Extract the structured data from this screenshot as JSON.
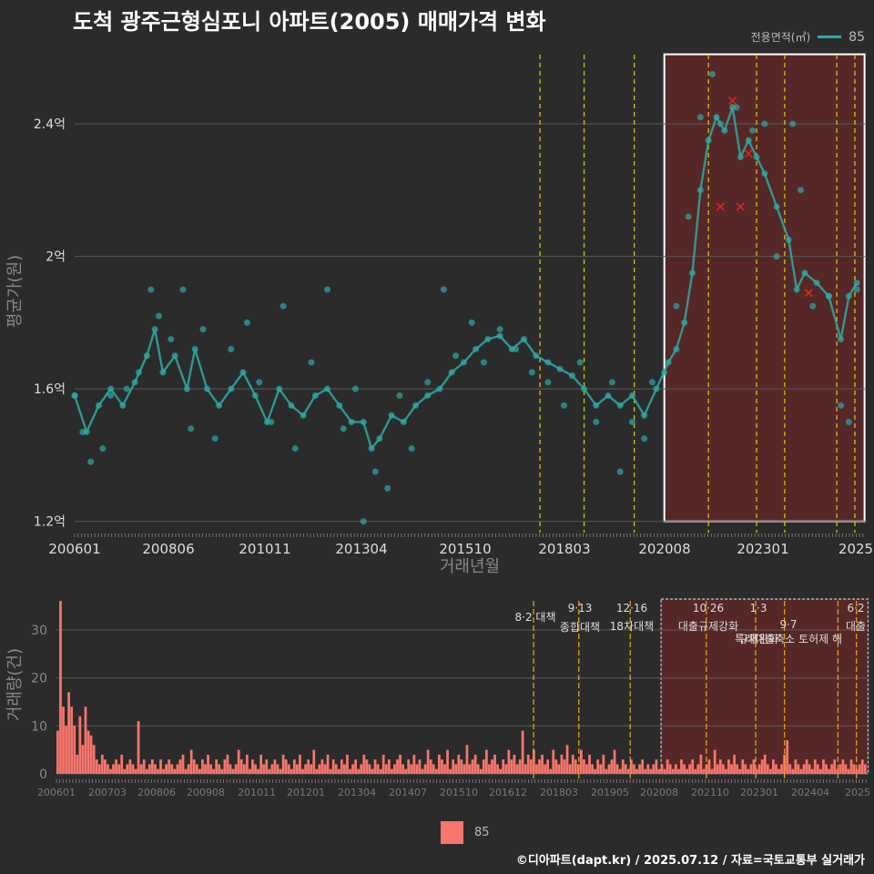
{
  "title": "도척 광주근형심포니 아파트(2005) 매매가격 변화",
  "legend": {
    "title": "전용면적(㎡)",
    "series_name": "85",
    "color": "#2fa9a4"
  },
  "bar_legend": {
    "name": "85",
    "color": "#f8766d"
  },
  "footer": "©디아파트(dapt.kr) / 2025.07.12 / 자료=국토교통부 실거래가",
  "colors": {
    "line": "#2fa9a4",
    "bar": "#f8766d",
    "highlight_fill": "#6a2626",
    "policy_line": "#d4c016",
    "bar_policy_line": "#e0a020",
    "cancelled_marker": "#e0261e",
    "background": "#2b2b2b"
  },
  "chart_data": [
    {
      "type": "line",
      "ylabel": "평균가(원)",
      "xlabel": "거래년월",
      "x_ticks": [
        "200601",
        "200806",
        "201011",
        "201304",
        "201510",
        "201803",
        "202008",
        "202301",
        "2025"
      ],
      "y_ticks": [
        "1.2억",
        "1.6억",
        "2억",
        "2.4억"
      ],
      "y_tick_values": [
        1.2,
        1.6,
        2.0,
        2.4
      ],
      "ylim": [
        1.18,
        2.62
      ],
      "xlim": [
        2006.0,
        2025.7
      ],
      "highlight_range": [
        2020.7,
        2025.6
      ],
      "policy_lines": [
        2017.6,
        2018.7,
        2019.95,
        2021.8,
        2023.0,
        2023.7,
        2025.0,
        2025.45
      ],
      "series": [
        {
          "name": "85",
          "points": [
            [
              2006.0,
              1.58
            ],
            [
              2006.3,
              1.47
            ],
            [
              2006.6,
              1.55
            ],
            [
              2006.9,
              1.6
            ],
            [
              2007.2,
              1.55
            ],
            [
              2007.5,
              1.62
            ],
            [
              2007.8,
              1.7
            ],
            [
              2008.0,
              1.78
            ],
            [
              2008.2,
              1.65
            ],
            [
              2008.5,
              1.7
            ],
            [
              2008.8,
              1.6
            ],
            [
              2009.0,
              1.72
            ],
            [
              2009.3,
              1.6
            ],
            [
              2009.6,
              1.55
            ],
            [
              2009.9,
              1.6
            ],
            [
              2010.2,
              1.65
            ],
            [
              2010.5,
              1.58
            ],
            [
              2010.8,
              1.5
            ],
            [
              2011.1,
              1.6
            ],
            [
              2011.4,
              1.55
            ],
            [
              2011.7,
              1.52
            ],
            [
              2012.0,
              1.58
            ],
            [
              2012.3,
              1.6
            ],
            [
              2012.6,
              1.55
            ],
            [
              2012.9,
              1.5
            ],
            [
              2013.2,
              1.5
            ],
            [
              2013.4,
              1.42
            ],
            [
              2013.6,
              1.45
            ],
            [
              2013.9,
              1.52
            ],
            [
              2014.2,
              1.5
            ],
            [
              2014.5,
              1.55
            ],
            [
              2014.8,
              1.58
            ],
            [
              2015.1,
              1.6
            ],
            [
              2015.4,
              1.65
            ],
            [
              2015.7,
              1.68
            ],
            [
              2016.0,
              1.72
            ],
            [
              2016.3,
              1.75
            ],
            [
              2016.6,
              1.76
            ],
            [
              2016.9,
              1.72
            ],
            [
              2017.2,
              1.75
            ],
            [
              2017.5,
              1.7
            ],
            [
              2017.8,
              1.68
            ],
            [
              2018.1,
              1.66
            ],
            [
              2018.4,
              1.64
            ],
            [
              2018.7,
              1.6
            ],
            [
              2019.0,
              1.55
            ],
            [
              2019.3,
              1.58
            ],
            [
              2019.6,
              1.55
            ],
            [
              2019.9,
              1.58
            ],
            [
              2020.2,
              1.52
            ],
            [
              2020.5,
              1.6
            ],
            [
              2020.8,
              1.68
            ],
            [
              2021.0,
              1.72
            ],
            [
              2021.2,
              1.8
            ],
            [
              2021.4,
              1.95
            ],
            [
              2021.6,
              2.2
            ],
            [
              2021.8,
              2.35
            ],
            [
              2022.0,
              2.42
            ],
            [
              2022.2,
              2.38
            ],
            [
              2022.4,
              2.45
            ],
            [
              2022.6,
              2.3
            ],
            [
              2022.8,
              2.35
            ],
            [
              2023.0,
              2.3
            ],
            [
              2023.2,
              2.25
            ],
            [
              2023.5,
              2.15
            ],
            [
              2023.8,
              2.05
            ],
            [
              2024.0,
              1.9
            ],
            [
              2024.2,
              1.95
            ],
            [
              2024.5,
              1.92
            ],
            [
              2024.8,
              1.88
            ],
            [
              2025.1,
              1.75
            ],
            [
              2025.3,
              1.88
            ],
            [
              2025.5,
              1.92
            ]
          ]
        }
      ],
      "scatter_points": [
        [
          2006.0,
          1.58
        ],
        [
          2006.2,
          1.47
        ],
        [
          2006.4,
          1.38
        ],
        [
          2006.7,
          1.42
        ],
        [
          2006.9,
          1.58
        ],
        [
          2007.3,
          1.6
        ],
        [
          2007.6,
          1.65
        ],
        [
          2007.9,
          1.9
        ],
        [
          2008.1,
          1.82
        ],
        [
          2008.4,
          1.75
        ],
        [
          2008.7,
          1.9
        ],
        [
          2008.9,
          1.48
        ],
        [
          2009.2,
          1.78
        ],
        [
          2009.5,
          1.45
        ],
        [
          2009.9,
          1.72
        ],
        [
          2010.3,
          1.8
        ],
        [
          2010.6,
          1.62
        ],
        [
          2010.9,
          1.5
        ],
        [
          2011.2,
          1.85
        ],
        [
          2011.5,
          1.42
        ],
        [
          2011.9,
          1.68
        ],
        [
          2012.3,
          1.9
        ],
        [
          2012.7,
          1.48
        ],
        [
          2013.0,
          1.6
        ],
        [
          2013.2,
          1.2
        ],
        [
          2013.5,
          1.35
        ],
        [
          2013.8,
          1.3
        ],
        [
          2014.1,
          1.58
        ],
        [
          2014.4,
          1.42
        ],
        [
          2014.8,
          1.62
        ],
        [
          2015.2,
          1.9
        ],
        [
          2015.5,
          1.7
        ],
        [
          2015.9,
          1.8
        ],
        [
          2016.2,
          1.68
        ],
        [
          2016.6,
          1.78
        ],
        [
          2017.0,
          1.72
        ],
        [
          2017.4,
          1.65
        ],
        [
          2017.8,
          1.62
        ],
        [
          2018.2,
          1.55
        ],
        [
          2018.6,
          1.68
        ],
        [
          2019.0,
          1.5
        ],
        [
          2019.4,
          1.62
        ],
        [
          2019.6,
          1.35
        ],
        [
          2019.9,
          1.5
        ],
        [
          2020.2,
          1.45
        ],
        [
          2020.4,
          1.62
        ],
        [
          2020.7,
          1.65
        ],
        [
          2021.0,
          1.85
        ],
        [
          2021.3,
          2.12
        ],
        [
          2021.6,
          2.42
        ],
        [
          2021.9,
          2.55
        ],
        [
          2022.1,
          2.4
        ],
        [
          2022.5,
          2.45
        ],
        [
          2022.9,
          2.38
        ],
        [
          2023.2,
          2.4
        ],
        [
          2023.5,
          2.0
        ],
        [
          2023.9,
          2.4
        ],
        [
          2024.1,
          2.2
        ],
        [
          2024.4,
          1.85
        ],
        [
          2024.8,
          1.88
        ],
        [
          2025.1,
          1.55
        ],
        [
          2025.3,
          1.5
        ],
        [
          2025.5,
          1.9
        ]
      ],
      "cancelled_points": [
        [
          2022.1,
          2.15
        ],
        [
          2022.4,
          2.47
        ],
        [
          2022.6,
          2.15
        ],
        [
          2022.8,
          2.31
        ],
        [
          2024.3,
          1.89
        ]
      ]
    },
    {
      "type": "bar",
      "ylabel": "거래량(건)",
      "y_ticks": [
        "0",
        "10",
        "20",
        "30"
      ],
      "y_tick_values": [
        0,
        10,
        20,
        30
      ],
      "ylim": [
        0,
        37
      ],
      "x_ticks": [
        "200601",
        "200703",
        "200806",
        "200908",
        "201011",
        "201201",
        "201304",
        "201407",
        "201510",
        "201612",
        "201803",
        "201905",
        "202008",
        "202110",
        "202301",
        "202404",
        "2025"
      ],
      "highlight_range": [
        2020.7,
        2025.6
      ],
      "policy_lines": [
        2017.6,
        2018.7,
        2019.95,
        2021.8,
        2023.0,
        2023.7,
        2025.0,
        2025.45
      ],
      "policy_labels": [
        {
          "date": "8·2 대책",
          "name": ""
        },
        {
          "date": "9·13",
          "name": "종합대책"
        },
        {
          "date": "12·16",
          "name": "18차대책"
        },
        {
          "date": "10·26",
          "name": "대출규제강화"
        },
        {
          "date": "1·3",
          "name": "규제완화"
        },
        {
          "date": "9·7",
          "name": "특례대출축소 토허제 해"
        },
        {
          "date": "6·2",
          "name": "대출"
        }
      ],
      "series": [
        {
          "name": "85",
          "values": [
            9,
            36,
            14,
            10,
            17,
            14,
            10,
            4,
            12,
            6,
            14,
            9,
            8,
            6,
            3,
            2,
            4,
            3,
            2,
            1,
            2,
            3,
            2,
            4,
            1,
            2,
            3,
            2,
            1,
            11,
            2,
            3,
            1,
            2,
            3,
            2,
            1,
            3,
            1,
            2,
            3,
            2,
            1,
            2,
            3,
            4,
            1,
            2,
            5,
            3,
            2,
            1,
            3,
            2,
            4,
            2,
            1,
            3,
            2,
            1,
            3,
            4,
            2,
            1,
            2,
            5,
            3,
            2,
            4,
            1,
            3,
            2,
            1,
            4,
            2,
            3,
            1,
            2,
            3,
            2,
            1,
            4,
            3,
            2,
            1,
            3,
            2,
            4,
            1,
            2,
            3,
            2,
            5,
            1,
            2,
            3,
            2,
            4,
            1,
            3,
            2,
            1,
            3,
            2,
            4,
            1,
            2,
            3,
            1,
            2,
            4,
            3,
            2,
            1,
            3,
            2,
            1,
            4,
            2,
            3,
            1,
            2,
            3,
            4,
            2,
            1,
            3,
            2,
            4,
            2,
            3,
            1,
            2,
            5,
            3,
            2,
            1,
            4,
            3,
            2,
            5,
            1,
            3,
            2,
            4,
            3,
            2,
            6,
            2,
            3,
            4,
            2,
            1,
            3,
            5,
            2,
            3,
            4,
            2,
            1,
            3,
            2,
            5,
            3,
            4,
            2,
            3,
            9,
            2,
            4,
            3,
            5,
            2,
            3,
            4,
            2,
            3,
            1,
            5,
            3,
            2,
            4,
            3,
            6,
            2,
            4,
            3,
            2,
            5,
            3,
            2,
            4,
            2,
            1,
            3,
            2,
            4,
            1,
            2,
            3,
            5,
            2,
            1,
            3,
            2,
            1,
            3,
            2,
            1,
            2,
            3,
            1,
            2,
            1,
            2,
            3,
            1,
            2,
            1,
            3,
            2,
            1,
            2,
            1,
            3,
            2,
            1,
            2,
            3,
            1,
            2,
            4,
            1,
            2,
            3,
            1,
            5,
            2,
            3,
            2,
            1,
            3,
            2,
            4,
            2,
            1,
            3,
            2,
            1,
            2,
            3,
            1,
            2,
            3,
            4,
            2,
            1,
            3,
            2,
            1,
            2,
            4,
            7,
            2,
            1,
            3,
            2,
            1,
            2,
            3,
            2,
            1,
            3,
            2,
            1,
            3,
            2,
            1,
            2,
            3,
            1,
            2,
            3,
            2,
            1,
            3,
            2,
            1,
            2,
            3,
            2
          ]
        }
      ]
    }
  ]
}
